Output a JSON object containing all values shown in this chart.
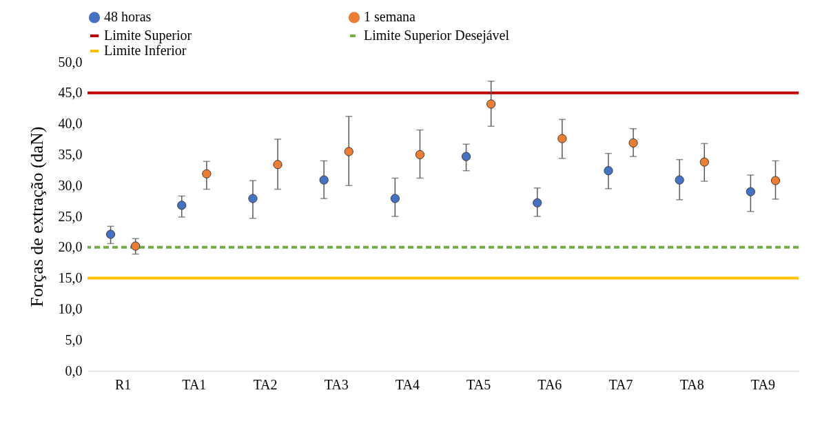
{
  "chart_data": {
    "type": "scatter",
    "ylabel": "Forças de extração (daN)",
    "categories": [
      "R1",
      "TA1",
      "TA2",
      "TA3",
      "TA4",
      "TA5",
      "TA6",
      "TA7",
      "TA8",
      "TA9"
    ],
    "series": [
      {
        "name": "48 horas",
        "color": "#4472c4",
        "values": [
          22.1,
          26.8,
          27.9,
          30.9,
          27.9,
          34.7,
          27.2,
          32.4,
          30.9,
          29.0
        ],
        "errors": [
          [
            20.6,
            23.4
          ],
          [
            24.9,
            28.3
          ],
          [
            24.7,
            30.8
          ],
          [
            27.9,
            34.0
          ],
          [
            25.0,
            31.2
          ],
          [
            32.4,
            36.7
          ],
          [
            25.0,
            29.6
          ],
          [
            29.5,
            35.2
          ],
          [
            27.7,
            34.2
          ],
          [
            25.8,
            31.7
          ]
        ]
      },
      {
        "name": "1 semana",
        "color": "#ed7d31",
        "values": [
          20.2,
          31.9,
          33.4,
          35.5,
          35.0,
          43.2,
          37.6,
          36.9,
          33.8,
          30.8
        ],
        "errors": [
          [
            18.9,
            21.4
          ],
          [
            29.4,
            33.9
          ],
          [
            29.4,
            37.5
          ],
          [
            30.0,
            41.2
          ],
          [
            31.2,
            39.0
          ],
          [
            39.6,
            46.9
          ],
          [
            34.4,
            40.7
          ],
          [
            34.7,
            39.2
          ],
          [
            30.7,
            36.8
          ],
          [
            27.8,
            34.0
          ]
        ]
      }
    ],
    "ref_lines": [
      {
        "axis": "y",
        "value": 45,
        "label": "Limite Superior",
        "color": "#c00000",
        "line_style": "solid"
      },
      {
        "axis": "y",
        "value": 20,
        "label": "Limite Superior Desejável",
        "color": "#70ad47",
        "line_style": "dashed"
      },
      {
        "axis": "y",
        "value": 15,
        "label": "Limite Inferior",
        "color": "#ffc000",
        "line_style": "solid"
      }
    ],
    "ylim": [
      0,
      50
    ],
    "yticks": [
      {
        "value": 0,
        "label": "0,0"
      },
      {
        "value": 5,
        "label": "5,0"
      },
      {
        "value": 10,
        "label": "10,0"
      },
      {
        "value": 15,
        "label": "15,0"
      },
      {
        "value": 20,
        "label": "20,0"
      },
      {
        "value": 25,
        "label": "25,0"
      },
      {
        "value": 30,
        "label": "30,0"
      },
      {
        "value": 35,
        "label": "35,0"
      },
      {
        "value": 40,
        "label": "40,0"
      },
      {
        "value": 45,
        "label": "45,0"
      },
      {
        "value": 50,
        "label": "50,0"
      }
    ],
    "legend": "top",
    "marker": "circle"
  }
}
